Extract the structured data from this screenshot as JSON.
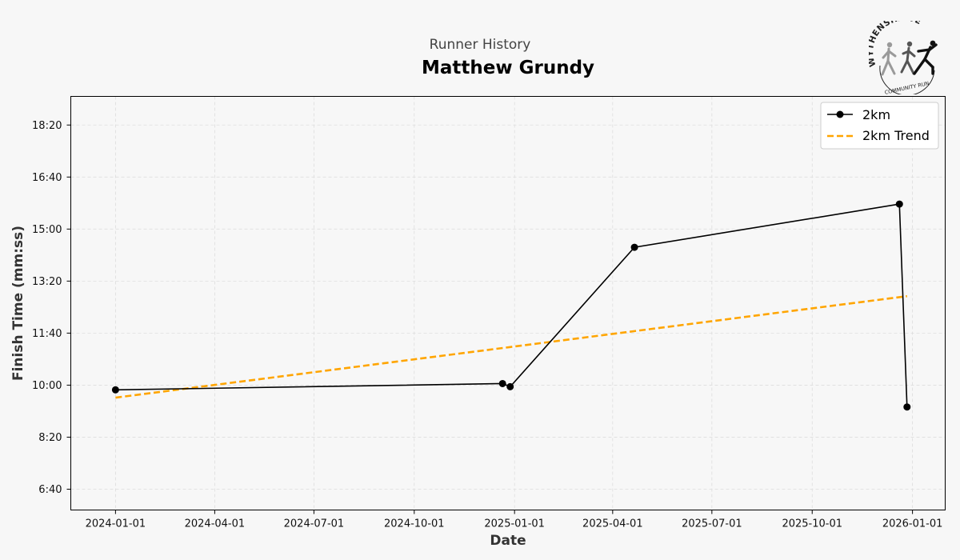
{
  "header": {
    "supertitle": "Runner History",
    "title": "Matthew Grundy"
  },
  "logo": {
    "name": "wythenshawe-community-run-logo",
    "arc_text": "WYTHENSHAWE",
    "sub_text": "COMMUNITY RUN"
  },
  "chart_data": {
    "type": "line",
    "xlabel": "Date",
    "ylabel": "Finish Time (mm:ss)",
    "x_ticks": [
      "2024-01-01",
      "2024-04-01",
      "2024-07-01",
      "2024-10-01",
      "2025-01-01",
      "2025-04-01",
      "2025-07-01",
      "2025-10-01",
      "2026-01-01"
    ],
    "y_ticks": [
      "6:40",
      "8:20",
      "10:00",
      "11:40",
      "13:20",
      "15:00",
      "16:40",
      "18:20"
    ],
    "y_tick_seconds": [
      400,
      500,
      600,
      700,
      800,
      900,
      1000,
      1100
    ],
    "xlim": [
      "2023-11-21",
      "2026-01-31"
    ],
    "ylim_seconds": [
      360,
      1155
    ],
    "grid": true,
    "legend_position": "top-right",
    "series": [
      {
        "name": "2km",
        "style": "solid-with-markers",
        "color": "#000000",
        "points": [
          {
            "x": "2024-01-01",
            "y": 591
          },
          {
            "x": "2024-12-21",
            "y": 603
          },
          {
            "x": "2024-12-28",
            "y": 597
          },
          {
            "x": "2025-04-21",
            "y": 865
          },
          {
            "x": "2025-12-20",
            "y": 948
          },
          {
            "x": "2025-12-27",
            "y": 558
          }
        ]
      },
      {
        "name": "2km Trend",
        "style": "dashed",
        "color": "#FFA500",
        "points": [
          {
            "x": "2024-01-01",
            "y": 576
          },
          {
            "x": "2025-12-27",
            "y": 771
          }
        ]
      }
    ]
  }
}
